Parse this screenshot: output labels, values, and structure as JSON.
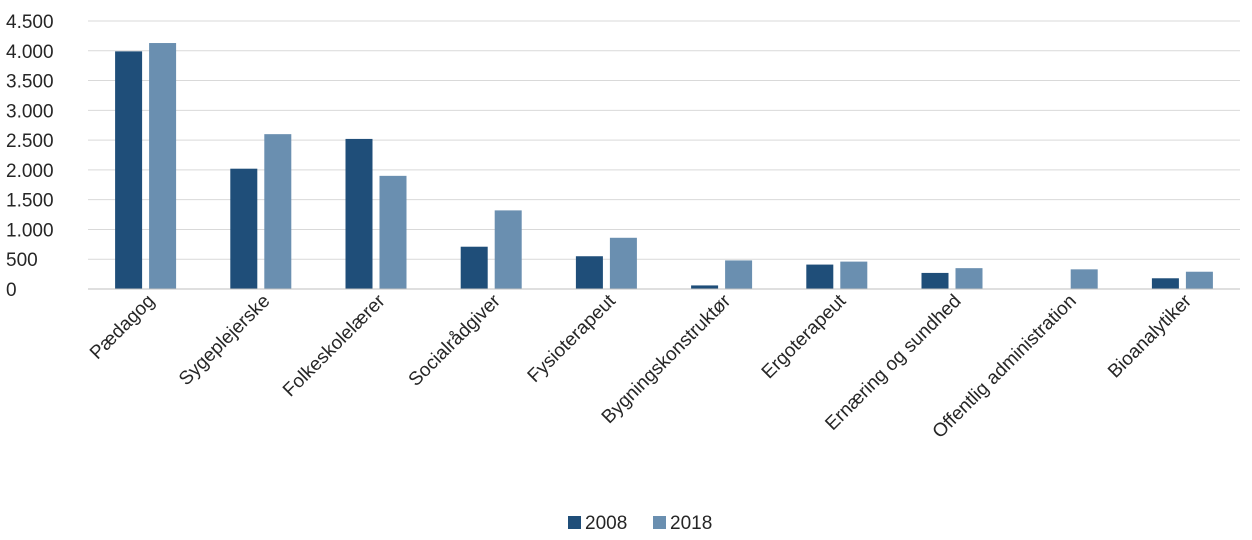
{
  "chart_data": {
    "type": "bar",
    "title": "",
    "xlabel": "",
    "ylabel": "",
    "ylim": [
      0,
      4500
    ],
    "yticks": [
      0,
      500,
      1000,
      1500,
      2000,
      2500,
      3000,
      3500,
      4000,
      4500
    ],
    "ytick_labels": [
      "0",
      "500",
      "1.000",
      "1.500",
      "2.000",
      "2.500",
      "3.000",
      "3.500",
      "4.000",
      "4.500"
    ],
    "grid": true,
    "legend_position": "bottom",
    "categories": [
      "Pædagog",
      "Sygeplejerske",
      "Folkeskolelærer",
      "Socialrådgiver",
      "Fysioterapeut",
      "Bygningskonstruktør",
      "Ergoterapeut",
      "Ernæring og sundhed",
      "Offentlig administration",
      "Bioanalytiker"
    ],
    "series": [
      {
        "name": "2008",
        "color": "#1f4e79",
        "values": [
          3990,
          2020,
          2520,
          710,
          550,
          60,
          410,
          270,
          0,
          180
        ]
      },
      {
        "name": "2018",
        "color": "#6a8fb0",
        "values": [
          4130,
          2600,
          1900,
          1320,
          860,
          480,
          460,
          350,
          330,
          290
        ]
      }
    ]
  }
}
